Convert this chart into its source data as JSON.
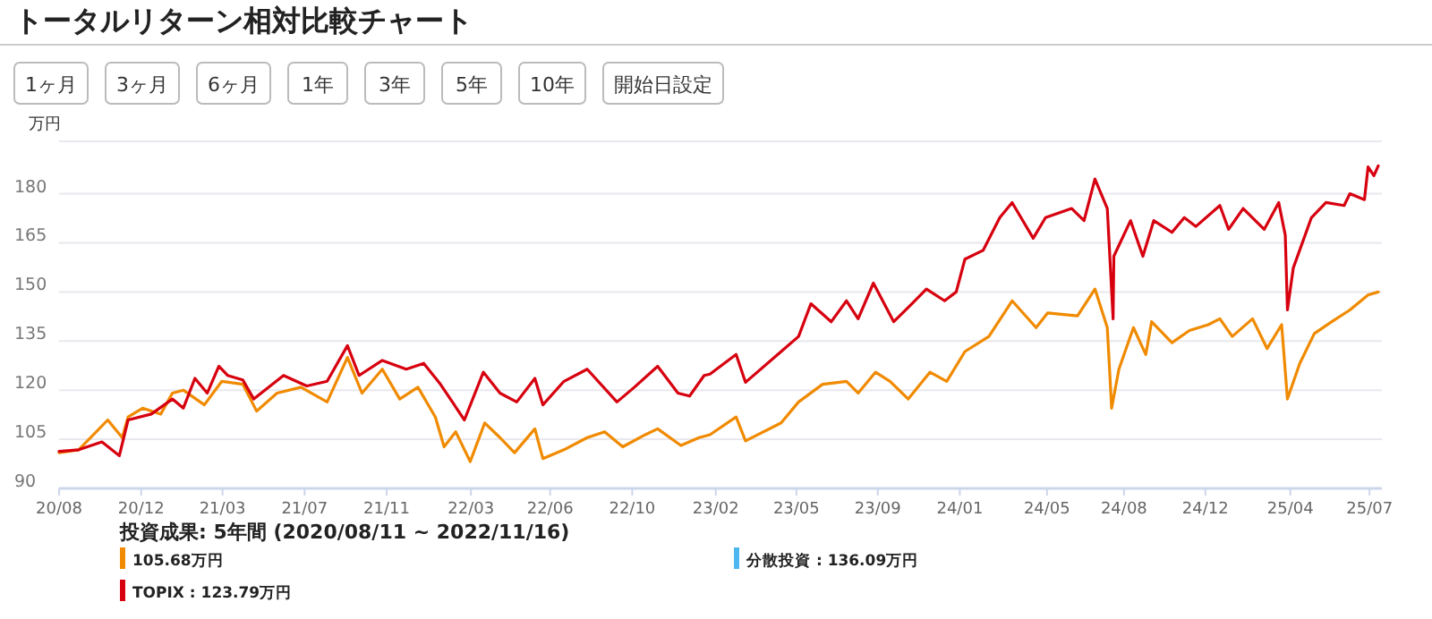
{
  "chart_data": {
    "type": "line",
    "title": "トータルリターン相対比較チャート",
    "ylabel": "万円",
    "legend_title": "投資成果: 5年間 (2020/08/11 ~ 2022/11/16)",
    "legend": "bottom",
    "grid": "y",
    "marker": "none",
    "line_style": "solid",
    "annotations": [
      "1ヶ月",
      "3ヶ月",
      "6ヶ月",
      "1年",
      "3年",
      "5年",
      "10年",
      "開始日設定"
    ],
    "xlim": [
      "2020-08-11",
      "2025-08-06"
    ],
    "ylim": [
      90,
      196
    ],
    "yticks": [
      90,
      105,
      120,
      135,
      150,
      165,
      180
    ],
    "xticks": [
      {
        "value": "2020-08-11",
        "label": "20/08"
      },
      {
        "value": "2020-12-02",
        "label": "20/12"
      },
      {
        "value": "2021-03-24",
        "label": "21/03"
      },
      {
        "value": "2021-07-15",
        "label": "21/07"
      },
      {
        "value": "2021-11-05",
        "label": "21/11"
      },
      {
        "value": "2022-03-01",
        "label": "22/03"
      },
      {
        "value": "2022-06-18",
        "label": "22/06"
      },
      {
        "value": "2022-10-09",
        "label": "22/10"
      },
      {
        "value": "2023-02-01",
        "label": "23/02"
      },
      {
        "value": "2023-05-23",
        "label": "23/05"
      },
      {
        "value": "2023-09-12",
        "label": "23/09"
      },
      {
        "value": "2024-01-03",
        "label": "24/01"
      },
      {
        "value": "2024-05-02",
        "label": "24/05"
      },
      {
        "value": "2024-08-16",
        "label": "24/08"
      },
      {
        "value": "2024-12-06",
        "label": "24/12"
      },
      {
        "value": "2025-04-02",
        "label": "25/04"
      },
      {
        "value": "2025-07-20",
        "label": "25/07"
      }
    ],
    "series": [
      {
        "name": "105.68万円",
        "color": "#f08a00",
        "x": [
          "2020-08-11",
          "2020-09-07",
          "2020-10-17",
          "2020-11-06",
          "2020-11-14",
          "2020-12-04",
          "2020-12-29",
          "2021-01-14",
          "2021-01-29",
          "2021-02-27",
          "2021-03-23",
          "2021-04-21",
          "2021-05-10",
          "2021-06-07",
          "2021-07-10",
          "2021-08-15",
          "2021-09-12",
          "2021-10-02",
          "2021-10-30",
          "2021-11-23",
          "2021-12-18",
          "2022-01-11",
          "2022-01-23",
          "2022-02-08",
          "2022-02-28",
          "2022-03-20",
          "2022-04-10",
          "2022-04-30",
          "2022-05-28",
          "2022-06-08",
          "2022-07-07",
          "2022-08-08",
          "2022-09-01",
          "2022-09-26",
          "2022-10-27",
          "2022-11-13",
          "2022-12-15",
          "2023-01-09",
          "2023-01-24",
          "2023-03-01",
          "2023-03-14",
          "2023-05-02",
          "2023-05-26",
          "2023-06-28",
          "2023-07-31",
          "2023-08-16",
          "2023-09-09",
          "2023-09-29",
          "2023-10-24",
          "2023-11-23",
          "2023-12-16",
          "2024-01-10",
          "2024-02-12",
          "2024-03-15",
          "2024-04-17",
          "2024-05-03",
          "2024-06-13",
          "2024-07-07",
          "2024-07-24",
          "2024-07-30",
          "2024-08-09",
          "2024-08-29",
          "2024-09-15",
          "2024-09-23",
          "2024-10-21",
          "2024-11-14",
          "2024-12-10",
          "2024-12-26",
          "2025-01-12",
          "2025-02-09",
          "2025-03-01",
          "2025-03-21",
          "2025-03-29",
          "2025-04-15",
          "2025-05-05",
          "2025-05-29",
          "2025-06-23",
          "2025-07-18",
          "2025-08-01"
        ],
        "values": [
          100.9,
          101.8,
          110.9,
          105.5,
          111.8,
          114.5,
          112.7,
          119.1,
          120,
          115.5,
          122.7,
          121.8,
          113.6,
          119.1,
          120.9,
          116.4,
          130,
          119.1,
          126.4,
          117.3,
          120.9,
          111.8,
          102.7,
          107.3,
          98.2,
          110,
          105.5,
          100.9,
          108.2,
          99.1,
          101.8,
          105.5,
          107.3,
          102.7,
          106.4,
          108.2,
          103.1,
          105.5,
          106.4,
          111.8,
          104.5,
          110,
          116.4,
          121.8,
          122.7,
          119.1,
          125.5,
          122.7,
          117.3,
          125.5,
          122.7,
          131.8,
          136.4,
          147.3,
          139.1,
          143.6,
          142.7,
          150.9,
          139.1,
          114.5,
          126.4,
          139.1,
          130.9,
          140.9,
          134.5,
          138.2,
          140,
          141.8,
          136.4,
          141.8,
          132.7,
          140,
          117.3,
          128.2,
          137.3,
          140.9,
          144.5,
          149.1,
          150
        ]
      },
      {
        "name": "分散投資 : 136.09万円",
        "color": "#4db8f0"
      },
      {
        "name": "TOPIX : 123.79万円",
        "color": "#d7000f",
        "x": [
          "2020-08-11",
          "2020-09-07",
          "2020-10-09",
          "2020-11-02",
          "2020-11-14",
          "2020-12-16",
          "2021-01-14",
          "2021-01-29",
          "2021-02-14",
          "2021-03-03",
          "2021-03-19",
          "2021-03-31",
          "2021-04-21",
          "2021-05-06",
          "2021-06-16",
          "2021-07-18",
          "2021-08-15",
          "2021-09-12",
          "2021-09-28",
          "2021-10-30",
          "2021-12-02",
          "2021-12-26",
          "2022-01-18",
          "2022-02-20",
          "2022-03-18",
          "2022-04-10",
          "2022-05-03",
          "2022-05-28",
          "2022-06-08",
          "2022-07-07",
          "2022-08-08",
          "2022-09-18",
          "2022-10-12",
          "2022-11-13",
          "2022-12-11",
          "2022-12-27",
          "2023-01-16",
          "2023-01-24",
          "2023-03-01",
          "2023-03-14",
          "2023-05-02",
          "2023-05-26",
          "2023-06-12",
          "2023-07-10",
          "2023-07-31",
          "2023-08-16",
          "2023-09-06",
          "2023-10-04",
          "2023-10-29",
          "2023-11-18",
          "2023-12-13",
          "2023-12-29",
          "2024-01-10",
          "2024-02-04",
          "2024-02-27",
          "2024-03-15",
          "2024-04-13",
          "2024-04-30",
          "2024-06-05",
          "2024-06-22",
          "2024-07-07",
          "2024-07-24",
          "2024-08-01",
          "2024-08-02",
          "2024-08-25",
          "2024-09-11",
          "2024-09-26",
          "2024-10-21",
          "2024-11-07",
          "2024-11-23",
          "2024-12-26",
          "2025-01-07",
          "2025-01-27",
          "2025-02-25",
          "2025-03-17",
          "2025-03-26",
          "2025-03-29",
          "2025-04-06",
          "2025-05-01",
          "2025-05-21",
          "2025-06-15",
          "2025-06-23",
          "2025-07-13",
          "2025-07-18",
          "2025-07-26",
          "2025-08-01"
        ],
        "values": [
          101.3,
          101.8,
          104.2,
          100,
          110.9,
          112.7,
          117.3,
          114.5,
          123.6,
          119.1,
          127.3,
          124.5,
          123.1,
          117.3,
          124.5,
          121.3,
          122.7,
          133.6,
          124.5,
          129.1,
          126.4,
          128.2,
          121.8,
          110.9,
          125.5,
          119.1,
          116.4,
          123.6,
          115.5,
          122.7,
          126.4,
          116.4,
          120.9,
          127.3,
          119.1,
          118.2,
          124.5,
          124.9,
          130.9,
          122.4,
          131.8,
          136.4,
          146.4,
          140.9,
          147.3,
          141.8,
          152.7,
          140.9,
          146.4,
          150.9,
          147.3,
          150,
          160,
          162.7,
          172.7,
          177.3,
          166.4,
          172.7,
          175.5,
          171.8,
          184.5,
          175.5,
          141.8,
          160.9,
          171.8,
          160.9,
          171.8,
          168.2,
          172.7,
          170,
          176.4,
          169.1,
          175.5,
          169.1,
          177.3,
          167.3,
          144.5,
          157.3,
          172.7,
          177.3,
          176.4,
          180,
          178.2,
          188.2,
          185.5,
          188.5
        ]
      }
    ]
  }
}
